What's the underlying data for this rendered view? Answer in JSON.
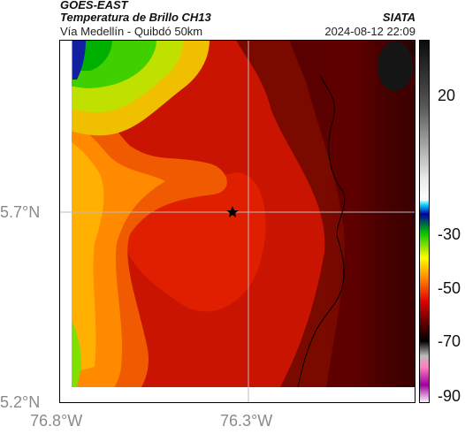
{
  "header": {
    "satellite": "GOES-EAST",
    "product": "Temperatura de Brillo CH13",
    "route": "Vía Medellín - Quibdó 50km",
    "org": "SIATA",
    "datetime": "2024-08-12 22:09"
  },
  "axes": {
    "y_ticks": [
      "5.7°N",
      "5.2°N"
    ],
    "x_ticks": [
      "76.8°W",
      "76.3°W"
    ]
  },
  "colorbar": {
    "ticks": [
      "20",
      "-30",
      "-50",
      "-70",
      "-90"
    ],
    "unit_hidden": true
  },
  "map": {
    "gridline_lon": "76.3°W",
    "gridline_lat": "5.7°N",
    "marker": "star"
  }
}
